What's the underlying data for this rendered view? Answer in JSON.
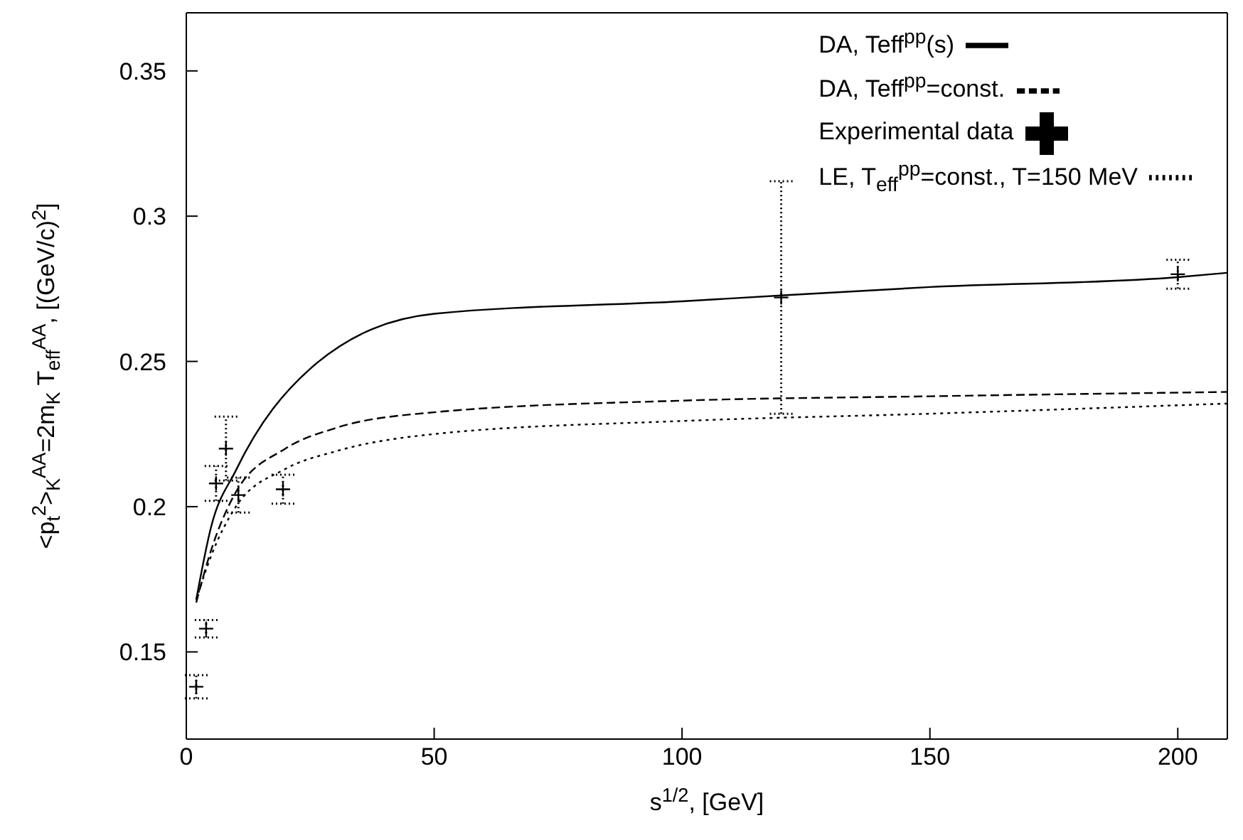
{
  "chart_data": {
    "type": "line",
    "xlabel": "s$^{1/2}$, [GeV]",
    "ylabel": "<p$_{t}$$^{2}$>$_{K}$$^{AA}$=2m$_{K}$ T$_{eff}$$^{AA}$, [(GeV/c)$^{2}$]",
    "xlim": [
      0,
      210
    ],
    "xticks": [
      0,
      50,
      100,
      150,
      200
    ],
    "ylim": [
      0.12,
      0.37
    ],
    "yticks": [
      0.15,
      0.2,
      0.25,
      0.3,
      0.35
    ],
    "legend": "top right",
    "series": [
      {
        "name": "DA, Teff$^{pp}$(s)",
        "line_style": "solid",
        "color": "#000000",
        "x": [
          2,
          5,
          10,
          25,
          50,
          100,
          150,
          200,
          210
        ],
        "values": [
          0.168,
          0.193,
          0.2125,
          0.2475,
          0.2664,
          0.2707,
          0.2756,
          0.279,
          0.2805
        ]
      },
      {
        "name": "DA, Teff$^{pp}$=const.",
        "line_style": "dashed",
        "color": "#000000",
        "x": [
          2,
          5,
          10,
          20,
          30,
          50,
          100,
          150,
          210
        ],
        "values": [
          0.167,
          0.185,
          0.205,
          0.22,
          0.227,
          0.2325,
          0.2365,
          0.238,
          0.2395
        ]
      },
      {
        "name": "LE, T$_{eff}$$^{pp}$=const., T=150 MeV",
        "line_style": "dotted",
        "color": "#000000",
        "x": [
          2,
          5,
          10,
          20,
          30,
          50,
          100,
          150,
          210
        ],
        "values": [
          0.168,
          0.183,
          0.2,
          0.213,
          0.219,
          0.225,
          0.2295,
          0.232,
          0.2355
        ]
      },
      {
        "name": "Experimental data",
        "type": "scatter",
        "marker": "cross",
        "color": "#000000",
        "x": [
          2,
          4,
          6,
          8,
          10.5,
          19.5,
          120,
          200
        ],
        "values": [
          0.138,
          0.158,
          0.208,
          0.22,
          0.204,
          0.206,
          0.272,
          0.28
        ],
        "errors": [
          0.004,
          0.003,
          0.006,
          0.011,
          0.006,
          0.005,
          0.04,
          0.005
        ]
      }
    ]
  }
}
